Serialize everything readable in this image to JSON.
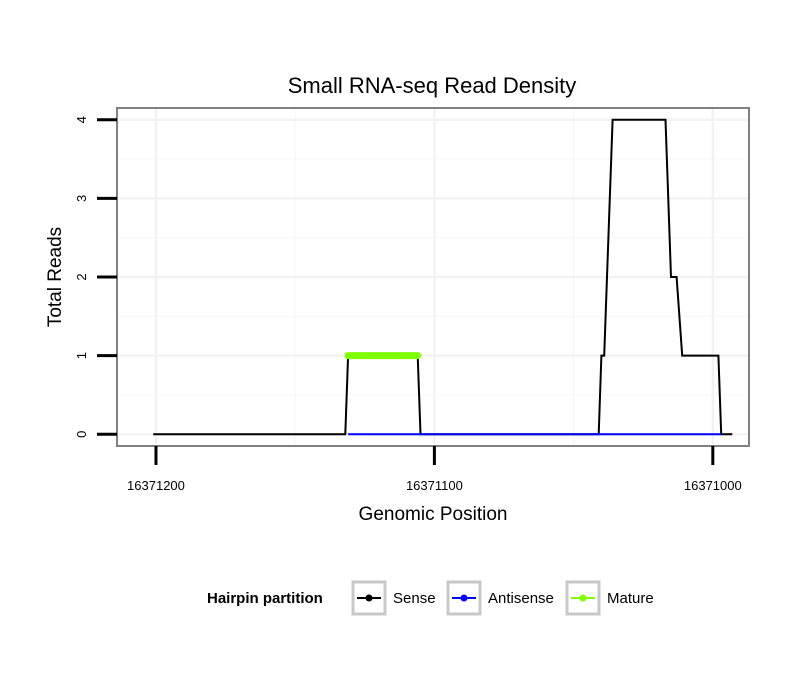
{
  "chart_data": {
    "type": "line",
    "title": "Small RNA-seq Read Density",
    "xlabel": "Genomic Position",
    "ylabel": "Total Reads",
    "x_reversed": true,
    "xlim": [
      16371214,
      16370987
    ],
    "ylim": [
      -0.15,
      4.15
    ],
    "x_ticks": [
      16371200,
      16371100,
      16371000
    ],
    "x_tick_labels": [
      "16371200",
      "16371100",
      "16371000"
    ],
    "y_ticks": [
      0,
      1,
      2,
      3,
      4
    ],
    "y_tick_labels": [
      "0",
      "1",
      "2",
      "3",
      "4"
    ],
    "grid": true,
    "series": [
      {
        "name": "Sense",
        "color": "#000000",
        "points": [
          [
            16371201,
            0
          ],
          [
            16371132,
            0
          ],
          [
            16371131,
            1
          ],
          [
            16371106,
            1
          ],
          [
            16371105,
            0
          ],
          [
            16371051,
            0
          ],
          [
            16371041,
            0
          ],
          [
            16371040,
            1
          ],
          [
            16371039,
            1
          ],
          [
            16371037,
            3
          ],
          [
            16371036,
            4
          ],
          [
            16371017,
            4
          ],
          [
            16371015,
            2
          ],
          [
            16371013,
            2
          ],
          [
            16371011,
            1
          ],
          [
            16370998,
            1
          ],
          [
            16370997,
            0
          ],
          [
            16370993,
            0
          ]
        ]
      },
      {
        "name": "Antisense",
        "color": "#0000ff",
        "points": [
          [
            16371131,
            0
          ],
          [
            16371105,
            0
          ],
          [
            16371040,
            0
          ],
          [
            16370997,
            0
          ]
        ]
      },
      {
        "name": "Mature",
        "color": "#7fff00",
        "points": [
          [
            16371131,
            1
          ],
          [
            16371106,
            1
          ]
        ]
      }
    ],
    "legend": {
      "title": "Hairpin partition",
      "position": "bottom",
      "entries": [
        "Sense",
        "Antisense",
        "Mature"
      ]
    }
  }
}
